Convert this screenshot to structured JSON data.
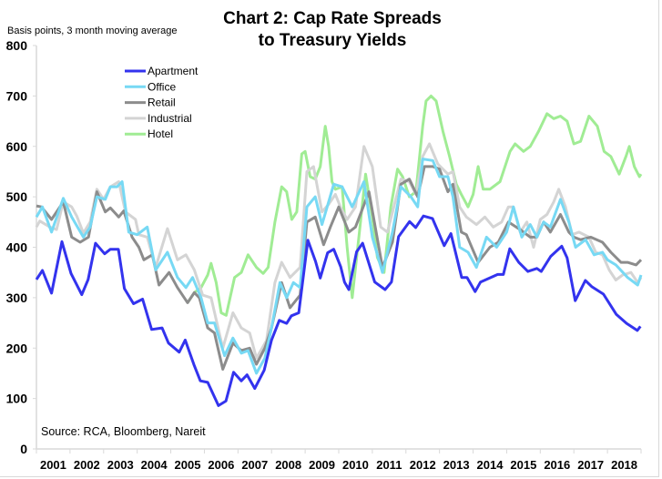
{
  "chart_data": {
    "type": "line",
    "title": "Chart 2: Cap Rate Spreads",
    "title_line2": "to Treasury Yields",
    "ylabel": "Basis points, 3 month moving average",
    "source": "Source: RCA, Bloomberg, Nareit",
    "ylim": [
      0,
      800
    ],
    "yticks": [
      "0",
      "100",
      "200",
      "300",
      "400",
      "500",
      "600",
      "700",
      "800"
    ],
    "xlim": [
      2001,
      2019
    ],
    "xticks": [
      "2001",
      "2002",
      "2003",
      "2004",
      "2005",
      "2006",
      "2007",
      "2008",
      "2009",
      "2010",
      "2011",
      "2012",
      "2013",
      "2014",
      "2015",
      "2016",
      "2017",
      "2018"
    ],
    "grid": false,
    "legend_position": "top-left",
    "series": [
      {
        "name": "Apartment",
        "color": "#3333ee",
        "x": [
          2001.0,
          2001.18,
          2001.45,
          2001.76,
          2002.03,
          2002.35,
          2002.54,
          2002.76,
          2003.03,
          2003.2,
          2003.44,
          2003.62,
          2003.89,
          2004.16,
          2004.43,
          2004.74,
          2004.93,
          2005.25,
          2005.43,
          2005.7,
          2005.88,
          2006.1,
          2006.42,
          2006.64,
          2006.87,
          2007.1,
          2007.27,
          2007.5,
          2007.78,
          2008.0,
          2008.23,
          2008.45,
          2008.59,
          2008.81,
          2009.08,
          2009.31,
          2009.45,
          2009.67,
          2009.85,
          2010.06,
          2010.17,
          2010.3,
          2010.53,
          2010.71,
          2011.07,
          2011.38,
          2011.57,
          2011.78,
          2012.11,
          2012.29,
          2012.52,
          2012.79,
          2013.14,
          2013.34,
          2013.66,
          2013.82,
          2014.06,
          2014.22,
          2014.73,
          2014.9,
          2015.09,
          2015.36,
          2015.63,
          2015.9,
          2016.03,
          2016.31,
          2016.64,
          2016.8,
          2017.04,
          2017.34,
          2017.53,
          2017.88,
          2018.26,
          2018.57,
          2018.89,
          2018.98
        ],
        "values": [
          336,
          354,
          309,
          411,
          348,
          306,
          336,
          408,
          387,
          396,
          396,
          318,
          288,
          297,
          237,
          240,
          210,
          192,
          216,
          165,
          135,
          132,
          86,
          95,
          152,
          135,
          147,
          120,
          156,
          216,
          255,
          249,
          264,
          270,
          414,
          372,
          339,
          389,
          396,
          361,
          331,
          316,
          391,
          408,
          331,
          316,
          331,
          421,
          451,
          439,
          462,
          457,
          403,
          427,
          340,
          340,
          312,
          331,
          346,
          346,
          397,
          370,
          352,
          358,
          352,
          382,
          402,
          379,
          294,
          334,
          322,
          307,
          267,
          249,
          235,
          243
        ]
      },
      {
        "name": "Office",
        "color": "#77d9f4",
        "x": [
          2001.0,
          2001.18,
          2001.45,
          2001.8,
          2002.05,
          2002.4,
          2002.6,
          2002.8,
          2003.05,
          2003.2,
          2003.4,
          2003.55,
          2003.75,
          2004.0,
          2004.3,
          2004.55,
          2004.9,
          2005.2,
          2005.45,
          2005.65,
          2005.9,
          2006.1,
          2006.3,
          2006.6,
          2006.85,
          2007.1,
          2007.3,
          2007.55,
          2007.8,
          2008.0,
          2008.25,
          2008.45,
          2008.65,
          2008.85,
          2009.05,
          2009.3,
          2009.5,
          2009.7,
          2009.85,
          2010.1,
          2010.4,
          2010.75,
          2011.0,
          2011.3,
          2011.6,
          2011.85,
          2012.15,
          2012.35,
          2012.5,
          2012.8,
          2013.0,
          2013.25,
          2013.4,
          2013.6,
          2013.85,
          2014.1,
          2014.4,
          2014.7,
          2015.0,
          2015.2,
          2015.45,
          2015.7,
          2015.9,
          2016.1,
          2016.3,
          2016.6,
          2016.85,
          2017.05,
          2017.35,
          2017.6,
          2017.85,
          2018.0,
          2018.25,
          2018.6,
          2018.9,
          2019.0
        ],
        "values": [
          460,
          480,
          430,
          497,
          460,
          420,
          440,
          500,
          495,
          520,
          520,
          530,
          430,
          425,
          440,
          355,
          390,
          340,
          320,
          340,
          300,
          250,
          250,
          185,
          220,
          190,
          195,
          150,
          180,
          240,
          330,
          300,
          330,
          320,
          480,
          500,
          445,
          490,
          525,
          520,
          480,
          530,
          420,
          350,
          430,
          520,
          500,
          480,
          575,
          572,
          540,
          540,
          500,
          400,
          390,
          360,
          420,
          400,
          430,
          480,
          420,
          445,
          420,
          450,
          440,
          495,
          450,
          400,
          415,
          385,
          390,
          375,
          365,
          340,
          325,
          345
        ]
      },
      {
        "name": "Retail",
        "color": "#8c8c8c",
        "x": [
          2001.0,
          2001.15,
          2001.45,
          2001.8,
          2002.05,
          2002.3,
          2002.55,
          2002.8,
          2003.05,
          2003.2,
          2003.45,
          2003.6,
          2003.85,
          2004.05,
          2004.2,
          2004.45,
          2004.65,
          2004.95,
          2005.2,
          2005.5,
          2005.7,
          2005.85,
          2006.1,
          2006.3,
          2006.55,
          2006.85,
          2007.1,
          2007.35,
          2007.55,
          2007.8,
          2008.0,
          2008.3,
          2008.55,
          2008.85,
          2009.05,
          2009.3,
          2009.55,
          2009.75,
          2010.0,
          2010.3,
          2010.5,
          2010.9,
          2011.3,
          2011.6,
          2011.85,
          2012.1,
          2012.35,
          2012.55,
          2012.8,
          2013.0,
          2013.25,
          2013.4,
          2013.65,
          2013.8,
          2014.15,
          2014.5,
          2014.75,
          2015.05,
          2015.4,
          2015.7,
          2015.9,
          2016.1,
          2016.3,
          2016.6,
          2016.85,
          2017.0,
          2017.2,
          2017.5,
          2017.85,
          2018.1,
          2018.4,
          2018.6,
          2018.85,
          2019.0
        ],
        "values": [
          482,
          480,
          455,
          490,
          420,
          410,
          420,
          510,
          470,
          478,
          460,
          472,
          420,
          400,
          375,
          385,
          325,
          350,
          320,
          290,
          310,
          300,
          240,
          230,
          158,
          210,
          195,
          200,
          168,
          200,
          240,
          330,
          280,
          305,
          450,
          460,
          405,
          440,
          480,
          430,
          440,
          510,
          360,
          410,
          525,
          535,
          500,
          560,
          560,
          555,
          510,
          525,
          430,
          425,
          370,
          400,
          410,
          450,
          435,
          420,
          420,
          450,
          430,
          465,
          430,
          420,
          415,
          420,
          410,
          390,
          370,
          370,
          365,
          375
        ]
      },
      {
        "name": "Industrial",
        "color": "#d4d4d4",
        "x": [
          2001.0,
          2001.1,
          2001.4,
          2001.6,
          2001.8,
          2002.05,
          2002.2,
          2002.4,
          2002.6,
          2002.8,
          2003.0,
          2003.2,
          2003.45,
          2003.65,
          2003.95,
          2004.05,
          2004.3,
          2004.55,
          2004.9,
          2005.2,
          2005.45,
          2005.7,
          2005.95,
          2006.2,
          2006.55,
          2006.85,
          2007.1,
          2007.35,
          2007.55,
          2007.85,
          2008.1,
          2008.3,
          2008.55,
          2008.85,
          2009.05,
          2009.25,
          2009.5,
          2009.7,
          2009.9,
          2010.05,
          2010.25,
          2010.5,
          2010.75,
          2011.0,
          2011.25,
          2011.45,
          2011.85,
          2012.1,
          2012.3,
          2012.5,
          2012.7,
          2012.95,
          2013.25,
          2013.4,
          2013.6,
          2013.8,
          2014.1,
          2014.35,
          2014.6,
          2014.85,
          2015.05,
          2015.2,
          2015.4,
          2015.6,
          2015.8,
          2016.0,
          2016.2,
          2016.4,
          2016.55,
          2016.75,
          2016.95,
          2017.15,
          2017.45,
          2017.65,
          2017.85,
          2018.05,
          2018.25,
          2018.45,
          2018.7,
          2018.9,
          2019.0
        ],
        "values": [
          440,
          452,
          440,
          435,
          490,
          480,
          462,
          428,
          450,
          515,
          495,
          520,
          530,
          470,
          455,
          425,
          420,
          360,
          437,
          375,
          385,
          355,
          305,
          300,
          200,
          270,
          240,
          230,
          180,
          215,
          330,
          370,
          340,
          360,
          550,
          560,
          470,
          485,
          505,
          480,
          455,
          480,
          600,
          560,
          440,
          430,
          535,
          530,
          505,
          580,
          605,
          565,
          545,
          550,
          480,
          460,
          445,
          460,
          440,
          450,
          480,
          480,
          430,
          450,
          400,
          455,
          465,
          490,
          515,
          480,
          425,
          430,
          420,
          390,
          385,
          355,
          335,
          345,
          350,
          330,
          340
        ]
      },
      {
        "name": "Hotel",
        "color": "#a0ec94",
        "x": [
          2005.5,
          2005.7,
          2005.9,
          2006.1,
          2006.2,
          2006.35,
          2006.5,
          2006.65,
          2006.9,
          2007.1,
          2007.3,
          2007.55,
          2007.75,
          2007.9,
          2008.1,
          2008.3,
          2008.45,
          2008.6,
          2008.75,
          2008.9,
          2009.0,
          2009.15,
          2009.3,
          2009.45,
          2009.6,
          2009.7,
          2009.8,
          2009.9,
          2010.1,
          2010.25,
          2010.4,
          2010.6,
          2010.8,
          2011.0,
          2011.15,
          2011.35,
          2011.55,
          2011.75,
          2011.9,
          2012.1,
          2012.3,
          2012.5,
          2012.6,
          2012.75,
          2012.9,
          2013.1,
          2013.3,
          2013.5,
          2013.65,
          2013.85,
          2014.0,
          2014.15,
          2014.3,
          2014.5,
          2014.8,
          2015.1,
          2015.25,
          2015.5,
          2015.7,
          2015.95,
          2016.2,
          2016.4,
          2016.6,
          2016.8,
          2017.0,
          2017.2,
          2017.45,
          2017.7,
          2017.9,
          2018.1,
          2018.35,
          2018.55,
          2018.65,
          2018.8,
          2018.95,
          2019.0
        ],
        "values": [
          290,
          310,
          320,
          345,
          368,
          330,
          270,
          265,
          340,
          350,
          385,
          360,
          348,
          360,
          450,
          520,
          510,
          455,
          470,
          585,
          590,
          540,
          535,
          560,
          640,
          600,
          530,
          515,
          520,
          400,
          300,
          420,
          545,
          460,
          380,
          350,
          480,
          555,
          540,
          500,
          510,
          640,
          690,
          700,
          690,
          630,
          580,
          525,
          505,
          480,
          505,
          560,
          515,
          515,
          530,
          590,
          605,
          590,
          600,
          630,
          665,
          655,
          660,
          650,
          605,
          610,
          660,
          640,
          590,
          580,
          545,
          580,
          600,
          560,
          540,
          545
        ]
      }
    ]
  }
}
